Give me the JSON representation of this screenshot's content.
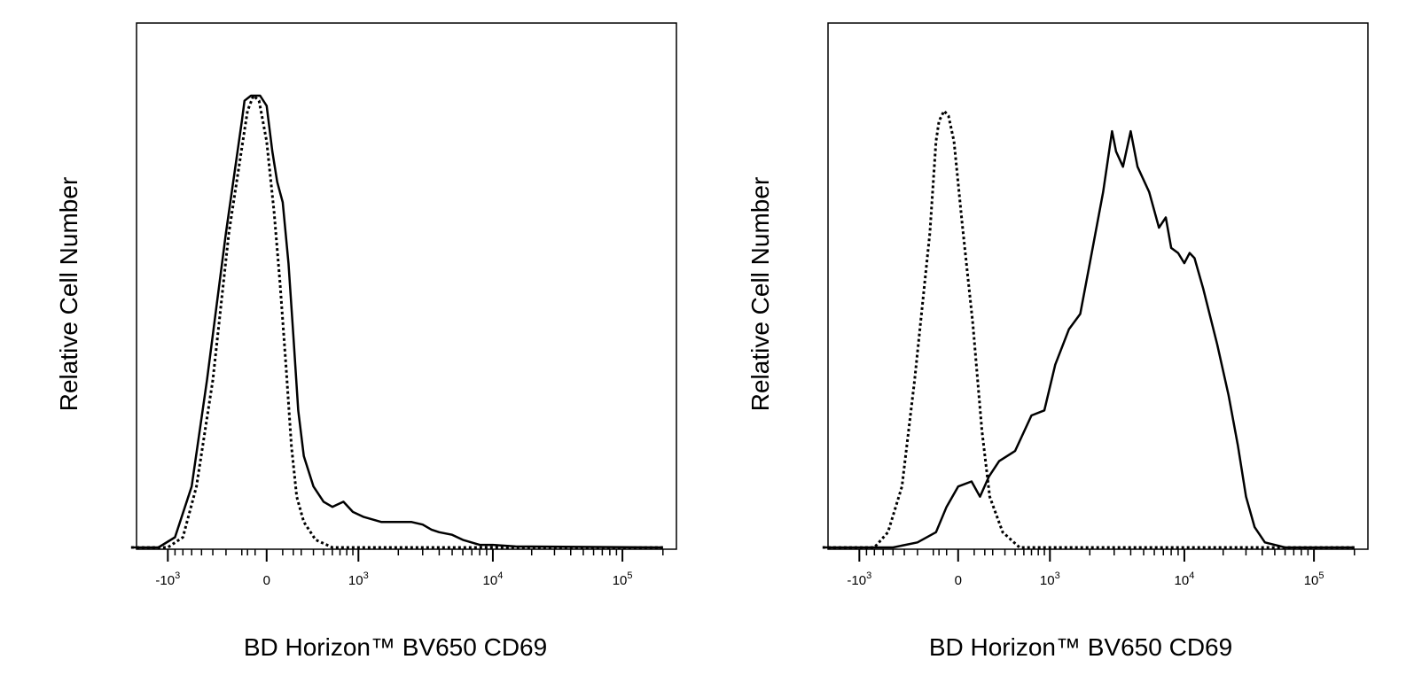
{
  "chart_data": [
    {
      "type": "area",
      "ylabel": "Relative Cell Number",
      "xlabel": "BD Horizon™ BV650 CD69",
      "x_scale": "biexponential",
      "xlim": [
        -2000,
        200000
      ],
      "ylim": [
        0,
        100
      ],
      "x_ticks": [
        {
          "value": -1000,
          "base": "-10",
          "exp": "3"
        },
        {
          "value": 0,
          "base": "0",
          "exp": ""
        },
        {
          "value": 1000,
          "base": "10",
          "exp": "3"
        },
        {
          "value": 10000,
          "base": "10",
          "exp": "4"
        },
        {
          "value": 100000,
          "base": "10",
          "exp": "5"
        }
      ],
      "series": [
        {
          "style": "solid",
          "color": "#000000",
          "points": [
            [
              -2000,
              0
            ],
            [
              -1200,
              0
            ],
            [
              -900,
              2
            ],
            [
              -700,
              12
            ],
            [
              -550,
              33
            ],
            [
              -400,
              62
            ],
            [
              -300,
              84
            ],
            [
              -250,
              88
            ],
            [
              -150,
              89
            ],
            [
              -50,
              89
            ],
            [
              0,
              87
            ],
            [
              30,
              78
            ],
            [
              60,
              72
            ],
            [
              100,
              68
            ],
            [
              150,
              56
            ],
            [
              200,
              42
            ],
            [
              260,
              27
            ],
            [
              320,
              18
            ],
            [
              400,
              12
            ],
            [
              500,
              9
            ],
            [
              600,
              8
            ],
            [
              750,
              9
            ],
            [
              900,
              7
            ],
            [
              1100,
              6
            ],
            [
              1500,
              5
            ],
            [
              2000,
              5
            ],
            [
              2500,
              5
            ],
            [
              3000,
              4.5
            ],
            [
              3500,
              3.5
            ],
            [
              4000,
              3
            ],
            [
              5000,
              2.5
            ],
            [
              6000,
              1.5
            ],
            [
              8000,
              0.5
            ],
            [
              10000,
              0.5
            ],
            [
              15000,
              0.2
            ],
            [
              200000,
              0
            ]
          ]
        },
        {
          "style": "dotted",
          "color": "#000000",
          "points": [
            [
              -2000,
              0
            ],
            [
              -1000,
              0
            ],
            [
              -800,
              2
            ],
            [
              -650,
              12
            ],
            [
              -500,
              33
            ],
            [
              -380,
              62
            ],
            [
              -280,
              80
            ],
            [
              -200,
              86
            ],
            [
              -120,
              89
            ],
            [
              -60,
              88
            ],
            [
              0,
              80
            ],
            [
              40,
              66
            ],
            [
              80,
              52
            ],
            [
              130,
              35
            ],
            [
              180,
              20
            ],
            [
              240,
              10
            ],
            [
              320,
              5
            ],
            [
              420,
              1.5
            ],
            [
              600,
              0
            ],
            [
              200000,
              0
            ]
          ]
        }
      ]
    },
    {
      "type": "area",
      "ylabel": "Relative Cell Number",
      "xlabel": "BD Horizon™ BV650 CD69",
      "x_scale": "biexponential",
      "xlim": [
        -2000,
        200000
      ],
      "ylim": [
        0,
        100
      ],
      "x_ticks": [
        {
          "value": -1000,
          "base": "-10",
          "exp": "3"
        },
        {
          "value": 0,
          "base": "0",
          "exp": ""
        },
        {
          "value": 1000,
          "base": "10",
          "exp": "3"
        },
        {
          "value": 10000,
          "base": "10",
          "exp": "4"
        },
        {
          "value": 100000,
          "base": "10",
          "exp": "5"
        }
      ],
      "series": [
        {
          "style": "solid",
          "color": "#000000",
          "points": [
            [
              -2000,
              0
            ],
            [
              -600,
              0
            ],
            [
              -400,
              1
            ],
            [
              -250,
              3
            ],
            [
              -100,
              8
            ],
            [
              0,
              12
            ],
            [
              80,
              13
            ],
            [
              150,
              10
            ],
            [
              250,
              14
            ],
            [
              350,
              17
            ],
            [
              500,
              19
            ],
            [
              700,
              26
            ],
            [
              900,
              27
            ],
            [
              1100,
              36
            ],
            [
              1400,
              43
            ],
            [
              1700,
              46
            ],
            [
              2000,
              56
            ],
            [
              2500,
              70
            ],
            [
              2900,
              82
            ],
            [
              3100,
              78
            ],
            [
              3500,
              75
            ],
            [
              4000,
              82
            ],
            [
              4500,
              75
            ],
            [
              5500,
              70
            ],
            [
              6500,
              63
            ],
            [
              7300,
              65
            ],
            [
              8000,
              59
            ],
            [
              9000,
              58
            ],
            [
              10000,
              56
            ],
            [
              11000,
              58
            ],
            [
              12000,
              57
            ],
            [
              14000,
              51
            ],
            [
              18000,
              40
            ],
            [
              22000,
              30
            ],
            [
              26000,
              20
            ],
            [
              30000,
              10
            ],
            [
              35000,
              4
            ],
            [
              42000,
              1
            ],
            [
              60000,
              0
            ],
            [
              200000,
              0
            ]
          ]
        },
        {
          "style": "dotted",
          "color": "#000000",
          "points": [
            [
              -2000,
              0
            ],
            [
              -800,
              0
            ],
            [
              -650,
              3
            ],
            [
              -520,
              12
            ],
            [
              -420,
              33
            ],
            [
              -320,
              62
            ],
            [
              -250,
              80
            ],
            [
              -200,
              84
            ],
            [
              -130,
              86
            ],
            [
              -80,
              85
            ],
            [
              -30,
              80
            ],
            [
              20,
              64
            ],
            [
              90,
              44
            ],
            [
              170,
              23
            ],
            [
              260,
              10
            ],
            [
              380,
              3
            ],
            [
              550,
              0
            ],
            [
              200000,
              0
            ]
          ]
        }
      ]
    }
  ]
}
